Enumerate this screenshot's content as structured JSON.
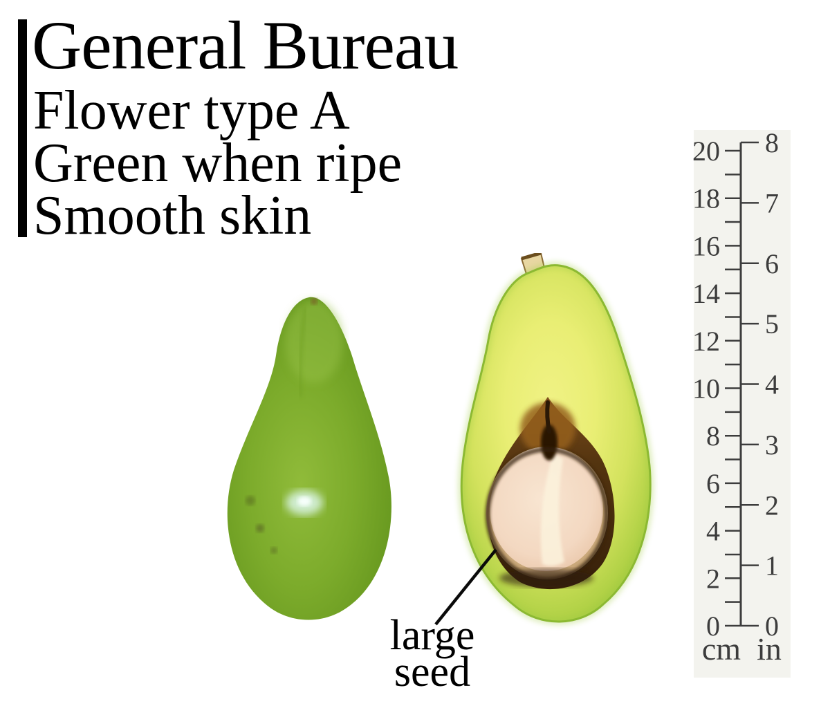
{
  "header": {
    "title": "General Bureau",
    "traits": [
      "Flower type A",
      "Green when ripe",
      "Smooth skin"
    ]
  },
  "annotation": {
    "line1": "large",
    "line2": "seed"
  },
  "ruler": {
    "cm_tick_max": 20,
    "cm_labels": [
      0,
      2,
      4,
      6,
      8,
      10,
      12,
      14,
      16,
      18,
      20
    ],
    "in_labels": [
      0,
      1,
      2,
      3,
      4,
      5,
      6,
      7,
      8
    ],
    "unit_left": "cm",
    "unit_right": "in"
  },
  "colors": {
    "ink": "#000000",
    "ruler_ink": "#3c3c3c",
    "ruler_paper": "#f3f3ee",
    "skin_green": "#7cab2b",
    "flesh_yellow": "#e9ee74",
    "seed_cream": "#f4dcc6",
    "cavity_brown": "#42290f"
  }
}
